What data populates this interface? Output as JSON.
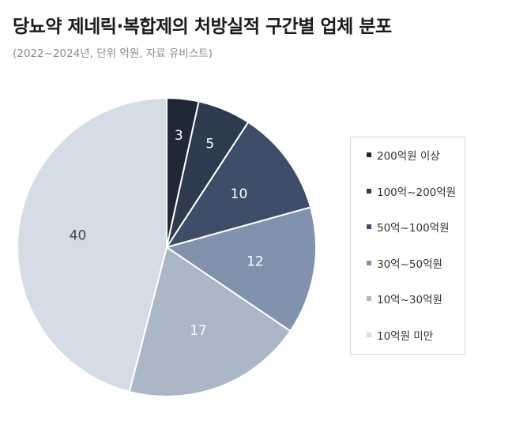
{
  "header": {
    "title": "당뇨약 제네릭·복합제의 처방실적 구간별 업체 분포",
    "subtitle": "(2022~2024년, 단위 억원, 자료 유비스트)"
  },
  "chart_data": {
    "type": "pie",
    "title": "당뇨약 제네릭·복합제의 처방실적 구간별 업체 분포",
    "subtitle": "(2022~2024년, 단위 억원, 자료 유비스트)",
    "start_angle": "12 o'clock",
    "direction": "clockwise",
    "legend_position": "right",
    "slices": [
      {
        "label": "200억원 이상",
        "value": 3,
        "color": "#1f2836"
      },
      {
        "label": "100억~200억원",
        "value": 5,
        "color": "#2e3a4d"
      },
      {
        "label": "50억~100억원",
        "value": 10,
        "color": "#3f4e68"
      },
      {
        "label": "30억~50억원",
        "value": 12,
        "color": "#8092ac"
      },
      {
        "label": "10억~30억원",
        "value": 17,
        "color": "#abb6c7"
      },
      {
        "label": "10억원 미만",
        "value": 40,
        "color": "#d6dce6"
      }
    ],
    "value_label_colors": [
      "#ffffff",
      "#ffffff",
      "#ffffff",
      "#ffffff",
      "#ffffff",
      "#3b4658"
    ]
  }
}
